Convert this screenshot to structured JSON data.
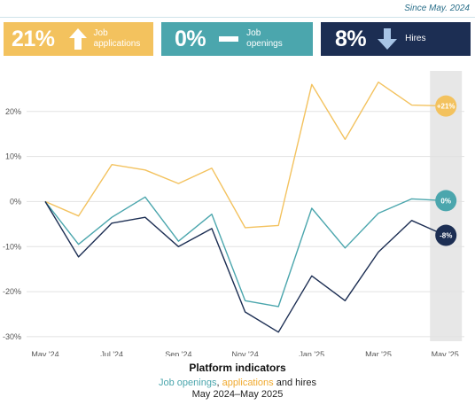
{
  "header": {
    "since": "Since May. 2024"
  },
  "cards": [
    {
      "value": "21%",
      "direction": "up",
      "label_line1": "Job",
      "label_line2": "applications",
      "color": "#f3c25e"
    },
    {
      "value": "0%",
      "direction": "flat",
      "label_line1": "Job",
      "label_line2": "openings",
      "color": "#4ba6ad"
    },
    {
      "value": "8%",
      "direction": "down",
      "label_line1": "Hires",
      "label_line2": "",
      "color": "#1c2e53"
    }
  ],
  "chart_data": {
    "type": "line",
    "x": [
      "May '24",
      "Jun '24",
      "Jul '24",
      "Aug '24",
      "Sep '24",
      "Oct '24",
      "Nov '24",
      "Dec '24",
      "Jan '25",
      "Feb '25",
      "Mar '25",
      "Apr '25",
      "May '25"
    ],
    "x_tick_labels": [
      "May '24",
      "Jul '24",
      "Sep '24",
      "Nov '24",
      "Jan '25",
      "Mar '25",
      "May '25"
    ],
    "y_ticks": [
      20,
      10,
      0,
      -10,
      -20,
      -30
    ],
    "y_tick_labels": [
      "20%",
      "10%",
      "0%",
      "-10%",
      "-20%",
      "-30%"
    ],
    "ylim": [
      -31,
      29
    ],
    "grid": true,
    "highlight_last_period": true,
    "series": [
      {
        "key": "applications",
        "color": "#f3c25e",
        "end_label": "+21%",
        "values": [
          0,
          -3.2,
          8.2,
          7.0,
          4.0,
          7.4,
          -5.8,
          -5.3,
          26.0,
          13.8,
          26.5,
          21.4,
          21.2
        ]
      },
      {
        "key": "openings",
        "color": "#4ba6ad",
        "end_label": "0%",
        "values": [
          0,
          -9.5,
          -3.5,
          1.0,
          -8.8,
          -2.8,
          -22.0,
          -23.3,
          -1.5,
          -10.3,
          -2.6,
          0.6,
          0.2
        ]
      },
      {
        "key": "hires",
        "color": "#1c2e53",
        "end_label": "-8%",
        "values": [
          0,
          -12.3,
          -4.8,
          -3.5,
          -10.0,
          -6.0,
          -24.5,
          -29.0,
          -16.5,
          -22.0,
          -11.2,
          -4.2,
          -7.5
        ]
      }
    ]
  },
  "caption": {
    "title": "Platform indicators",
    "sub_part1": "Job openings",
    "sub_sep1": ", ",
    "sub_part2": "applications",
    "sub_sep2": " and hires",
    "range": "May 2024–May 2025"
  }
}
